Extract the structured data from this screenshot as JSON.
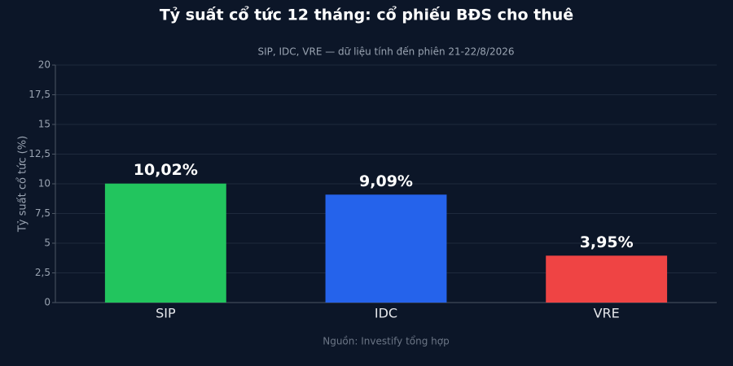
{
  "chart_data": {
    "type": "bar",
    "title": "Tỷ suất cổ tức 12 tháng: cổ phiếu BĐS cho thuê",
    "subtitle": "SIP, IDC, VRE — dữ liệu tính đến phiên 21-22/8/2026",
    "y_label": "Tỷ suất cổ tức (%)",
    "source": "Nguồn: Investify tổng hợp",
    "categories": [
      "SIP",
      "IDC",
      "VRE"
    ],
    "values": [
      10.02,
      9.09,
      3.95
    ],
    "value_labels": [
      "10,02%",
      "9,09%",
      "3,95%"
    ],
    "colors": [
      "#22c55e",
      "#2563eb",
      "#ef4444"
    ],
    "ylim": [
      0,
      20
    ],
    "yticks": [
      0,
      {
        "value": 2.5,
        "label": "2,5"
      },
      5,
      {
        "value": 7.5,
        "label": "7,5"
      },
      10,
      {
        "value": 12.5,
        "label": "12,5"
      },
      15,
      {
        "value": 17.5,
        "label": "17,5"
      },
      20
    ],
    "grid": true
  }
}
